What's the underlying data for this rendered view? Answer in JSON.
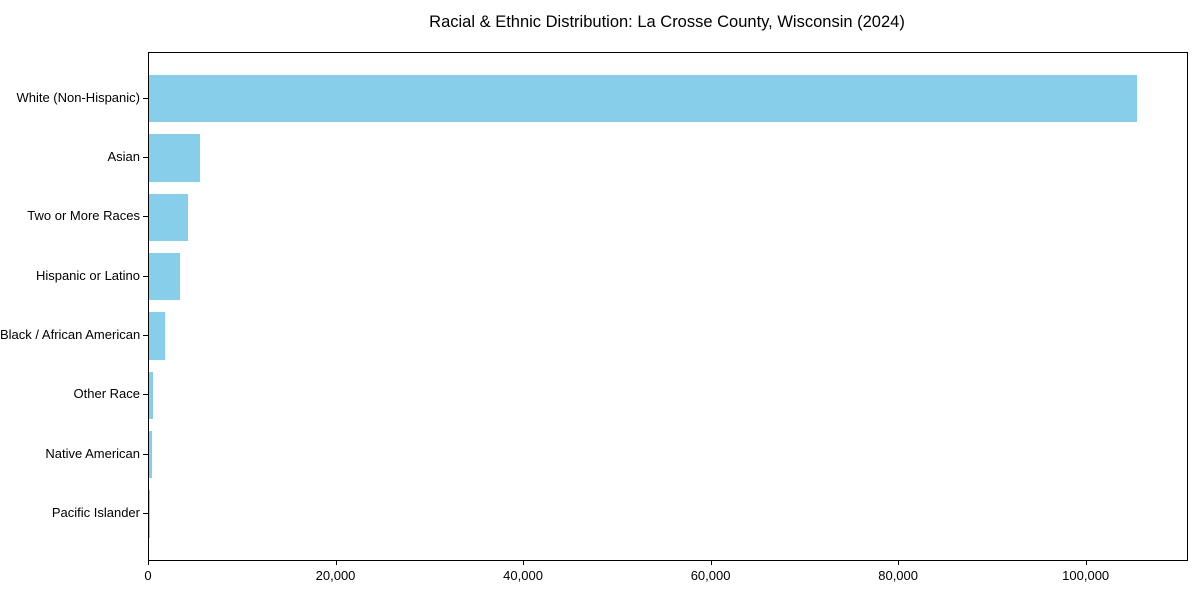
{
  "chart_data": {
    "type": "bar",
    "orientation": "horizontal",
    "title": "Racial & Ethnic Distribution: La Crosse County, Wisconsin (2024)",
    "categories": [
      "White (Non-Hispanic)",
      "Asian",
      "Two or More Races",
      "Hispanic or Latino",
      "Black / African American",
      "Other Race",
      "Native American",
      "Pacific Islander"
    ],
    "values": [
      105400,
      5400,
      4200,
      3300,
      1750,
      420,
      320,
      50
    ],
    "xlabel": "",
    "ylabel": "",
    "xlim": [
      0,
      110700
    ],
    "xticks": [
      0,
      20000,
      40000,
      60000,
      80000,
      100000
    ],
    "xtick_labels": [
      "0",
      "20,000",
      "40,000",
      "60,000",
      "80,000",
      "100,000"
    ],
    "bar_color": "#87CEEB",
    "text_color": "#000000",
    "grid": false,
    "legend": null
  }
}
